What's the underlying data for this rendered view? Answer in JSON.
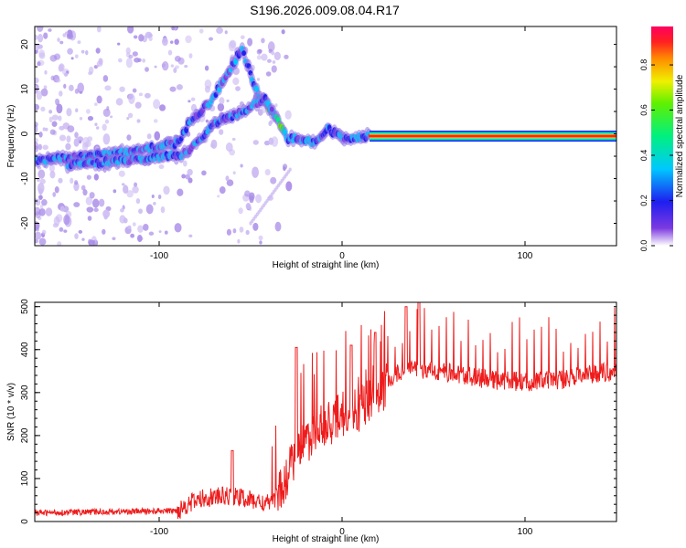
{
  "title": "S196.2026.009.08.04.R17",
  "colors": {
    "snr_line": "#ee1c1c",
    "axis": "#000000",
    "spectral_path": "#3b2bbf",
    "spectral_noise": "#a98ce8"
  },
  "chart_data": [
    {
      "type": "heatmap",
      "name": "spectrogram",
      "xlabel": "Height of straight line (km)",
      "ylabel": "Frequency (Hz)",
      "xlim": [
        -168,
        150
      ],
      "ylim": [
        -25,
        24
      ],
      "xticks": [
        -100,
        0,
        100
      ],
      "yticks": [
        -20,
        -10,
        0,
        10,
        20
      ],
      "colorbar": {
        "label": "Normalized spectral amplitude",
        "range": [
          0,
          0.97
        ],
        "ticks": [
          0.0,
          0.2,
          0.4,
          0.6,
          0.8
        ],
        "tick_labels": [
          "0.0",
          "0.2",
          "0.4",
          "0.6",
          "0.8"
        ]
      },
      "ridges": [
        {
          "name": "main trace",
          "points": [
            [
              -168,
              -6
            ],
            [
              -140,
              -5
            ],
            [
              -115,
              -4
            ],
            [
              -100,
              -3
            ],
            [
              -90,
              -2
            ],
            [
              -83,
              3
            ],
            [
              -72,
              7
            ],
            [
              -62,
              14
            ],
            [
              -55,
              19
            ],
            [
              -45,
              8
            ],
            [
              -38,
              5
            ],
            [
              -30,
              -1
            ],
            [
              -20,
              -1
            ],
            [
              -15,
              -2
            ],
            [
              -8,
              1
            ],
            [
              0,
              -1
            ],
            [
              15,
              -0.5
            ],
            [
              40,
              -0.5
            ],
            [
              100,
              -0.5
            ],
            [
              150,
              -0.5
            ]
          ]
        },
        {
          "name": "second trace",
          "points": [
            [
              -150,
              -7
            ],
            [
              -120,
              -6
            ],
            [
              -100,
              -5
            ],
            [
              -88,
              -5
            ],
            [
              -80,
              -2
            ],
            [
              -70,
              2
            ],
            [
              -60,
              4
            ],
            [
              -50,
              6
            ],
            [
              -42,
              8
            ],
            [
              -38,
              5
            ]
          ]
        }
      ]
    },
    {
      "type": "line",
      "name": "snr",
      "xlabel": "Height of straight line (km)",
      "ylabel": "SNR (10 * v/v)",
      "xlim": [
        -168,
        150
      ],
      "ylim": [
        0,
        510
      ],
      "xticks": [
        -100,
        0,
        100
      ],
      "yticks": [
        0,
        100,
        200,
        300,
        400,
        500
      ],
      "baseline": [
        [
          -168,
          20
        ],
        [
          -90,
          25
        ],
        [
          -85,
          40
        ],
        [
          -75,
          55
        ],
        [
          -60,
          60
        ],
        [
          -50,
          50
        ],
        [
          -40,
          40
        ],
        [
          -35,
          60
        ],
        [
          -30,
          110
        ],
        [
          -25,
          150
        ],
        [
          -20,
          190
        ],
        [
          -10,
          220
        ],
        [
          0,
          250
        ],
        [
          5,
          250
        ],
        [
          10,
          265
        ],
        [
          20,
          300
        ],
        [
          25,
          320
        ],
        [
          30,
          345
        ],
        [
          40,
          355
        ],
        [
          60,
          345
        ],
        [
          80,
          330
        ],
        [
          100,
          325
        ],
        [
          120,
          330
        ],
        [
          140,
          345
        ],
        [
          150,
          350
        ]
      ],
      "peaks": [
        [
          -60,
          165
        ],
        [
          -25,
          405
        ],
        [
          5,
          410
        ],
        [
          18,
          440
        ],
        [
          35,
          500
        ],
        [
          42,
          510
        ]
      ],
      "spike_spacing": 4
    }
  ]
}
